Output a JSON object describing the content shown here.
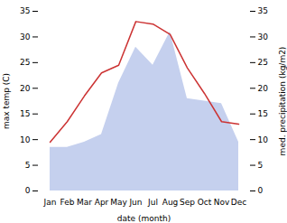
{
  "chart_data": {
    "type": "line",
    "categories": [
      "Jan",
      "Feb",
      "Mar",
      "Apr",
      "May",
      "Jun",
      "Jul",
      "Aug",
      "Sep",
      "Oct",
      "Nov",
      "Dec"
    ],
    "series": [
      {
        "type": "area",
        "color": "#c5d0ee",
        "axis": "y2",
        "values": [
          8.5,
          8.5,
          9.5,
          11.0,
          21.0,
          28.0,
          24.5,
          31.0,
          18.0,
          17.5,
          17.0,
          9.5
        ]
      },
      {
        "type": "line",
        "color": "#cc3333",
        "values": [
          9.5,
          13.5,
          18.5,
          23.0,
          24.5,
          33.0,
          32.5,
          30.5,
          24.0,
          19.0,
          13.5,
          13.0
        ]
      }
    ],
    "xlabel": "date (month)",
    "ylabel": "max temp (C)",
    "y2label": "med. precipitation (kg/m2)",
    "ylim": [
      0,
      35
    ],
    "yticks": [
      0,
      5,
      10,
      15,
      20,
      25,
      30,
      35
    ],
    "y2lim": [
      0,
      35
    ],
    "y2ticks": [
      0,
      5,
      10,
      15,
      20,
      25,
      30,
      35
    ],
    "grid": false
  }
}
